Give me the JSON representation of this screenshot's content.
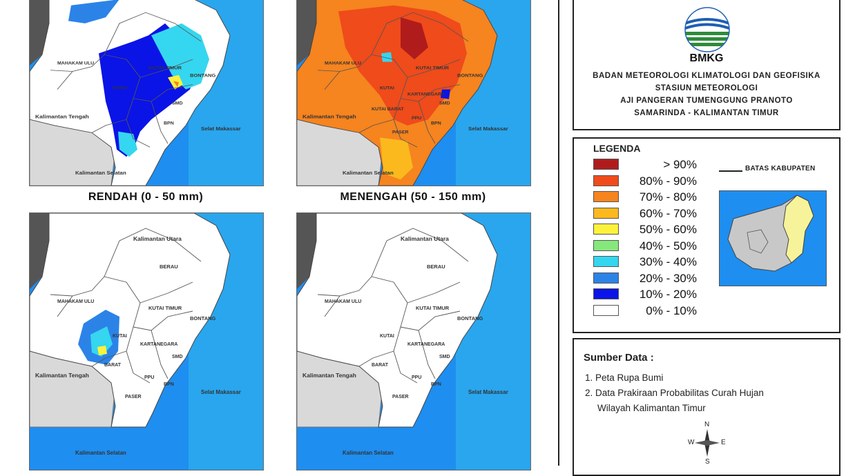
{
  "maps": [
    {
      "key": "rendah",
      "title": "RENDAH (0 - 50 mm)",
      "labels": {
        "kaltara": "",
        "mahakam_ulu": "MAHAKAM ULU",
        "kutai_timur": "KUTAI TIMUR",
        "berau": "",
        "bontang": "BONTANG",
        "kutai": "KUTAI",
        "kutai_barat": "",
        "kutai_kartanegara": "",
        "smd": "SMD",
        "ppu": "",
        "bpn": "BPN",
        "paser": "",
        "kalteng": "Kalimantan Tengah",
        "selat": "Selat Makassar",
        "kalsel": "Kalimantan Selatan"
      }
    },
    {
      "key": "menengah",
      "title": "MENENGAH (50 - 150 mm)",
      "labels": {
        "kaltara": "",
        "mahakam_ulu": "MAHAKAM ULU",
        "kutai_timur": "KUTAI TIMUR",
        "berau": "",
        "bontang": "BONTANG",
        "kutai": "KUTAI",
        "kutai_barat": "KUTAI BARAT",
        "kutai_kartanegara": "KARTANEGARA",
        "smd": "SMD",
        "ppu": "PPU",
        "bpn": "BPN",
        "paser": "PASER",
        "kalteng": "Kalimantan Tengah",
        "selat": "Selat Makassar",
        "kalsel": "Kalimantan Selatan"
      }
    },
    {
      "key": "tinggi",
      "title": "",
      "labels": {
        "kaltara": "Kalimantan Utara",
        "mahakam_ulu": "MAHAKAM ULU",
        "kutai_timur": "KUTAI TIMUR",
        "berau": "BERAU",
        "bontang": "BONTANG",
        "kutai": "KUTAI",
        "kutai_barat": "BARAT",
        "kutai_kartanegara": "KARTANEGARA",
        "smd": "SMD",
        "ppu": "PPU",
        "bpn": "BPN",
        "paser": "PASER",
        "kalteng": "Kalimantan Tengah",
        "selat": "Selat Makassar",
        "kalsel": "Kalimantan Selatan"
      }
    },
    {
      "key": "sangat_tinggi",
      "title": "",
      "labels": {
        "kaltara": "Kalimantan Utara",
        "mahakam_ulu": "MAHAKAM ULU",
        "kutai_timur": "KUTAI TIMUR",
        "berau": "BERAU",
        "bontang": "BONTANG",
        "kutai": "KUTAI",
        "kutai_barat": "BARAT",
        "kutai_kartanegara": "KARTANEGARA",
        "smd": "SMD",
        "ppu": "PPU",
        "bpn": "BPN",
        "paser": "PASER",
        "kalteng": "Kalimantan Tengah",
        "selat": "Selat Makassar",
        "kalsel": "Kalimantan Selatan"
      }
    }
  ],
  "institution": {
    "logo_text": "BMKG",
    "lines": [
      "BADAN METEOROLOGI KLIMATOLOGI DAN GEOFISIKA",
      "STASIUN METEOROLOGI",
      "AJI PANGERAN TUMENGGUNG PRANOTO",
      "SAMARINDA - KALIMANTAN TIMUR"
    ]
  },
  "legend": {
    "title": "LEGENDA",
    "items": [
      {
        "label": "> 90%",
        "color": "#b01c1c"
      },
      {
        "label": "80% - 90%",
        "color": "#ef4b1b"
      },
      {
        "label": "70% - 80%",
        "color": "#f6841f"
      },
      {
        "label": "60% - 70%",
        "color": "#fbb91e"
      },
      {
        "label": "50% - 60%",
        "color": "#fdf23b"
      },
      {
        "label": "40% - 50%",
        "color": "#86e87c"
      },
      {
        "label": "30% - 40%",
        "color": "#35d6ef"
      },
      {
        "label": "20% - 30%",
        "color": "#2b83e8"
      },
      {
        "label": "10% - 20%",
        "color": "#0a14e6"
      },
      {
        "label": "0% - 10%",
        "color": "#ffffff"
      }
    ],
    "boundary_label": "BATAS KABUPATEN"
  },
  "source": {
    "title": "Sumber Data :",
    "items": [
      "1. Peta Rupa Bumi",
      "2. Data Prakiraan Probabilitas Curah Hujan",
      "Wilayah Kalimantan Timur"
    ]
  },
  "compass": {
    "n": "N",
    "s": "S",
    "e": "E",
    "w": "W"
  }
}
